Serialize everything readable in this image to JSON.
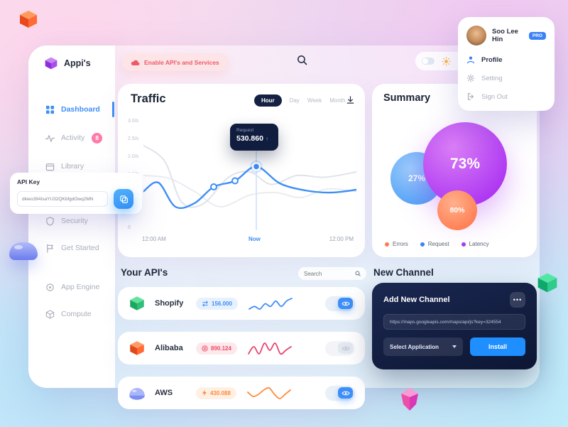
{
  "app": {
    "name": "Appi's"
  },
  "topbar": {
    "enable_button": "Enable API's and Services"
  },
  "profile_menu": {
    "name": "Soo Lee Hin",
    "badge": "PRO",
    "items": [
      {
        "label": "Profile"
      },
      {
        "label": "Setting"
      },
      {
        "label": "Sign Out"
      }
    ]
  },
  "sidebar": {
    "items": [
      {
        "label": "Dashboard",
        "active": true
      },
      {
        "label": "Activity",
        "badge": "8"
      },
      {
        "label": "Library"
      },
      {
        "label": "Security"
      },
      {
        "label": "Get Started"
      },
      {
        "label": "App Engine"
      },
      {
        "label": "Compute"
      }
    ]
  },
  "api_key_popup": {
    "label": "API Key",
    "value": "dkieo394IsaYU32QKbfgdOwq2MN"
  },
  "traffic": {
    "title": "Traffic",
    "tabs": [
      "Hour",
      "Day",
      "Week",
      "Month"
    ],
    "active_tab": "Hour",
    "tooltip": {
      "label": "Request",
      "value": "530.860"
    },
    "chart_data": {
      "type": "line",
      "x_ticks": [
        "12:00 AM",
        "Now",
        "12:00 PM"
      ],
      "y_ticks": [
        "3.0/s",
        "2.5/s",
        "2.0/s",
        "1.5/s",
        "1.0/s",
        "0"
      ],
      "ylim": [
        0,
        3
      ],
      "series": [
        {
          "name": "requests",
          "color": "#3e8ef7",
          "width": 2.4,
          "points": [
            [
              0,
              1.05
            ],
            [
              7,
              1.3
            ],
            [
              15,
              0.62
            ],
            [
              24,
              0.72
            ],
            [
              33,
              1.18
            ],
            [
              43,
              1.35
            ],
            [
              53,
              1.75
            ],
            [
              64,
              1.28
            ],
            [
              76,
              1.08
            ],
            [
              88,
              1.02
            ],
            [
              100,
              1.1
            ]
          ],
          "dot_xs": [
            33,
            43
          ],
          "highlight_x": 53
        },
        {
          "name": "series-a",
          "color": "#dfe3e9",
          "width": 2,
          "points": [
            [
              0,
              2.35
            ],
            [
              10,
              1.9
            ],
            [
              18,
              0.75
            ],
            [
              28,
              0.7
            ],
            [
              40,
              1.45
            ],
            [
              50,
              1.6
            ],
            [
              60,
              1.25
            ],
            [
              72,
              1.5
            ],
            [
              85,
              1.45
            ],
            [
              100,
              1.6
            ]
          ]
        },
        {
          "name": "series-b",
          "color": "#eaecf0",
          "width": 2,
          "points": [
            [
              0,
              1.5
            ],
            [
              12,
              1.42
            ],
            [
              24,
              1.05
            ],
            [
              36,
              0.62
            ],
            [
              50,
              0.95
            ],
            [
              62,
              1.02
            ],
            [
              74,
              0.88
            ],
            [
              86,
              1.12
            ],
            [
              100,
              1.05
            ]
          ]
        }
      ]
    }
  },
  "summary": {
    "title": "Summary",
    "chart_data": {
      "type": "bubble",
      "bubbles": [
        {
          "label": "73%",
          "value": 73,
          "color": "#ad36f2"
        },
        {
          "label": "27%",
          "value": 27,
          "color": "#56a5f6"
        },
        {
          "label": "80%",
          "value": 80,
          "color": "#ff7e52"
        }
      ],
      "legend": [
        {
          "label": "Errors",
          "color": "#ff7a50"
        },
        {
          "label": "Request",
          "color": "#3b82f6"
        },
        {
          "label": "Latency",
          "color": "#a13df0"
        }
      ]
    }
  },
  "your_apis": {
    "title": "Your API's",
    "search_placeholder": "Search",
    "rows": [
      {
        "name": "Shopify",
        "metric": "156.000",
        "spark_color": "#3e8ef7",
        "toggle": "on",
        "spark": [
          3,
          4,
          3,
          5,
          4,
          6,
          4,
          6,
          7
        ]
      },
      {
        "name": "Alibaba",
        "metric": "890.124",
        "spark_color": "#e8436f",
        "toggle": "off",
        "spark": [
          4,
          6,
          4,
          7,
          5,
          7,
          4,
          5,
          6
        ]
      },
      {
        "name": "AWS",
        "metric": "430.088",
        "spark_color": "#ff8a3c",
        "toggle": "on",
        "spark": [
          5,
          3,
          4,
          6,
          7,
          4,
          2,
          4,
          6
        ]
      }
    ]
  },
  "new_channel": {
    "title": "New Channel",
    "card_title": "Add New Channel",
    "url_value": "https://maps.googleapis.com/maps/api/js?key=324554",
    "select_label": "Select Application",
    "install_label": "Install"
  },
  "icons": {
    "logo": "orange-3d-cube",
    "brand": "purple-3d-cube",
    "search": "magnifier",
    "enable": "cloud",
    "theme": "sun",
    "download": "download-arrow-tray",
    "copy": "copy-squares",
    "more": "ellipsis",
    "visibility": "eye",
    "select": "chevron-down",
    "shopify": "green-3d-cube",
    "alibaba": "orange-3d-cube",
    "aws": "lavender-dome",
    "decorations": [
      "blue-dome",
      "green-cube",
      "pink-gem"
    ]
  },
  "colors": {
    "accent_blue": "#3e8ef7",
    "navy": "#101d3f",
    "pink": "#ee5a6a",
    "purple": "#ad36f2",
    "orange": "#ff7e52",
    "light_blue": "#56a5f6",
    "badge_pink": "#ff7ba9",
    "install_blue": "#1f8fff"
  }
}
